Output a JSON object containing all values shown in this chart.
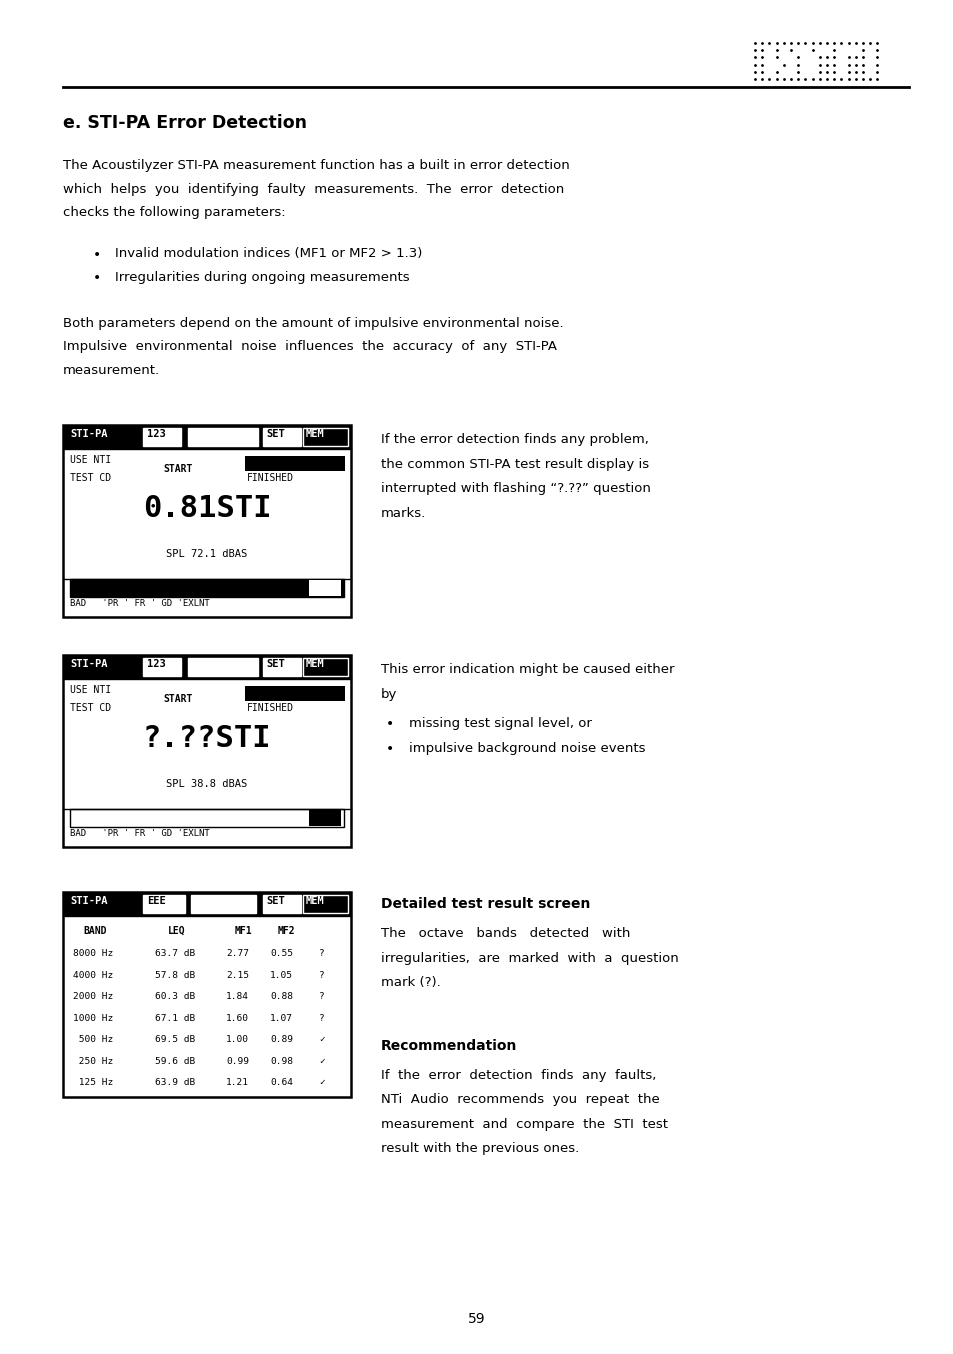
{
  "bg_color": "#ffffff",
  "page_width": 9.54,
  "page_height": 13.54,
  "dpi": 100,
  "title": "e. STI-PA Error Detection",
  "para1_lines": [
    "The Acoustilyzer STI-PA measurement function has a built in error detection",
    "which  helps  you  identifying  faulty  measurements.  The  error  detection",
    "checks the following parameters:"
  ],
  "bullets": [
    "Invalid modulation indices (MF1 or MF2 > 1.3)",
    "Irregularities during ongoing measurements"
  ],
  "para2_lines": [
    "Both parameters depend on the amount of impulsive environmental noise.",
    "Impulsive  environmental  noise  influences  the  accuracy  of  any  STI-PA",
    "measurement."
  ],
  "screen1_big": "0.81STI",
  "screen1_spl": "SPL 72.1 dBAS",
  "screen1_caption_lines": [
    "If the error detection finds any problem,",
    "the common STI-PA test result display is",
    "interrupted with flashing “?.??” question",
    "marks."
  ],
  "screen2_big": "?.??STI",
  "screen2_spl": "SPL 38.8 dBAS",
  "screen2_caption_line0": "This error indication might be caused either",
  "screen2_caption_line1": "by",
  "screen2_bullet1": "missing test signal level, or",
  "screen2_bullet2": "impulsive background noise events",
  "screen3_caption_title": "Detailed test result screen",
  "screen3_caption_lines": [
    "The   octave   bands   detected   with",
    "irregularities,  are  marked  with  a  question",
    "mark (?)."
  ],
  "rec_title": "Recommendation",
  "rec_lines": [
    "If  the  error  detection  finds  any  faults,",
    "NTi  Audio  recommends  you  repeat  the",
    "measurement  and  compare  the  STI  test",
    "result with the previous ones."
  ],
  "page_number": "59"
}
